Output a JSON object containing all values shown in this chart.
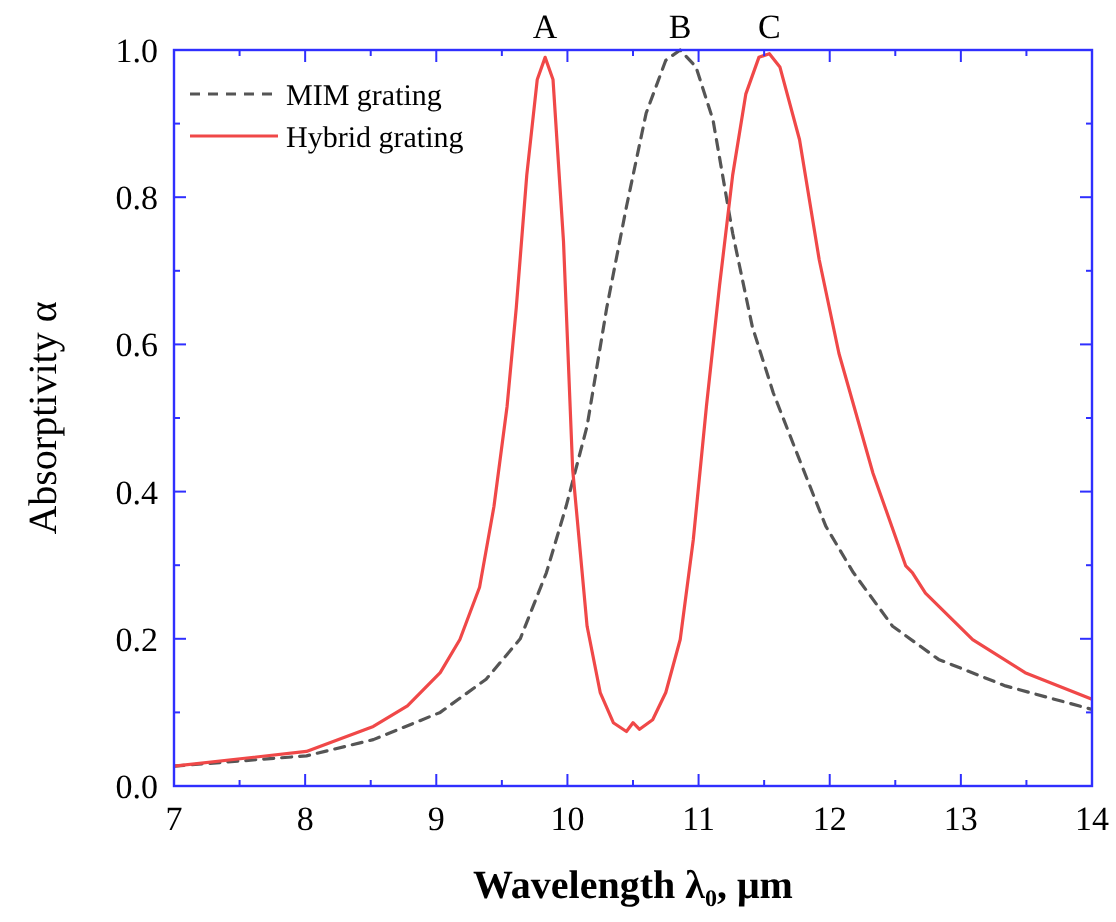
{
  "chart_data": {
    "type": "line",
    "xlabel": "Wavelength λ₀, μm",
    "ylabel": "Absorptivity α",
    "xlim": [
      7,
      14
    ],
    "ylim": [
      0,
      1
    ],
    "xticks": [
      7,
      {
        "value": 7.5,
        "label": null
      },
      8,
      {
        "value": 8.5,
        "label": null
      },
      9,
      {
        "value": 9.5,
        "label": null
      },
      10,
      {
        "value": 10.5,
        "label": null
      },
      11,
      {
        "value": 11.5,
        "label": null
      },
      12,
      {
        "value": 12.5,
        "label": null
      },
      13,
      {
        "value": 13.5,
        "label": null
      },
      14
    ],
    "yticks": [
      {
        "value": 0,
        "label": "0.0"
      },
      {
        "value": 0.1,
        "label": null
      },
      0.2,
      {
        "value": 0.3,
        "label": null
      },
      0.4,
      {
        "value": 0.5,
        "label": null
      },
      0.6,
      {
        "value": 0.7,
        "label": null
      },
      0.8,
      {
        "value": 0.9,
        "label": null
      },
      {
        "value": 1,
        "label": "1.0"
      }
    ],
    "legend": "top left",
    "grid": false,
    "annotations": [
      {
        "text": "A",
        "x": 9.83,
        "y": 1
      },
      {
        "text": "B",
        "x": 10.86,
        "y": 1
      },
      {
        "text": "C",
        "x": 11.54,
        "y": 1
      }
    ],
    "series": [
      {
        "name": "MIM grating",
        "color": "#555555",
        "line_style": "dashed",
        "x": [
          7,
          8.01,
          8.52,
          9.03,
          9.38,
          9.64,
          9.84,
          9.99,
          10.15,
          10.3,
          10.45,
          10.6,
          10.75,
          10.86,
          10.98,
          11.11,
          11.26,
          11.41,
          11.57,
          11.77,
          11.97,
          12.18,
          12.48,
          12.83,
          13.34,
          14
        ],
        "values": [
          0.027,
          0.041,
          0.063,
          0.1,
          0.145,
          0.2,
          0.29,
          0.38,
          0.489,
          0.65,
          0.787,
          0.914,
          0.986,
          1,
          0.977,
          0.905,
          0.751,
          0.624,
          0.534,
          0.443,
          0.353,
          0.29,
          0.217,
          0.172,
          0.136,
          0.104
        ]
      },
      {
        "name": "Hybrid grating",
        "color": "#f04848",
        "line_style": "solid",
        "x": [
          7,
          8.01,
          8.52,
          8.78,
          9.03,
          9.18,
          9.33,
          9.44,
          9.54,
          9.61,
          9.69,
          9.77,
          9.83,
          9.89,
          9.97,
          10.04,
          10.15,
          10.25,
          10.35,
          10.45,
          10.5,
          10.55,
          10.65,
          10.75,
          10.86,
          10.96,
          11.06,
          11.16,
          11.26,
          11.36,
          11.46,
          11.54,
          11.62,
          11.77,
          11.92,
          12.07,
          12.33,
          12.58,
          12.63,
          12.73,
          13.09,
          13.49,
          14
        ],
        "values": [
          0.027,
          0.047,
          0.081,
          0.109,
          0.154,
          0.199,
          0.27,
          0.38,
          0.516,
          0.65,
          0.83,
          0.96,
          0.99,
          0.96,
          0.74,
          0.43,
          0.217,
          0.127,
          0.086,
          0.074,
          0.086,
          0.077,
          0.09,
          0.127,
          0.199,
          0.335,
          0.516,
          0.68,
          0.83,
          0.94,
          0.99,
          0.995,
          0.977,
          0.878,
          0.715,
          0.588,
          0.425,
          0.299,
          0.29,
          0.262,
          0.199,
          0.154,
          0.118
        ]
      }
    ]
  }
}
